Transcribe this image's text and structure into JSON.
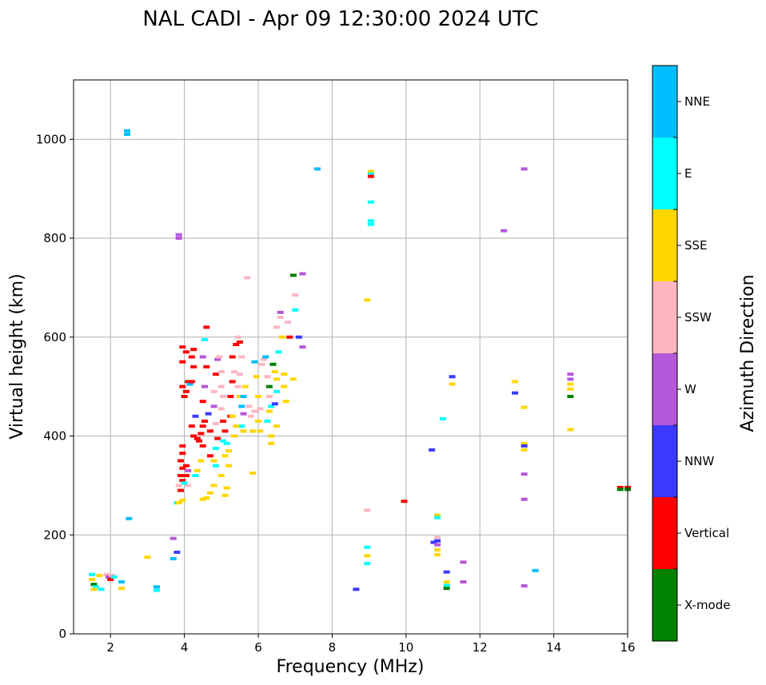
{
  "chart_data": {
    "type": "scatter",
    "title": "NAL CADI - Apr 09 12:30:00 2024 UTC",
    "xlabel": "Frequency (MHz)",
    "ylabel": "Virtual height (km)",
    "xlim": [
      1,
      16
    ],
    "ylim": [
      0,
      1120
    ],
    "xticks": [
      2,
      4,
      6,
      8,
      10,
      12,
      14,
      16
    ],
    "yticks": [
      0,
      200,
      400,
      600,
      800,
      1000
    ],
    "grid": true,
    "colorbar": {
      "label": "Azimuth Direction",
      "categories": [
        "X-mode",
        "Vertical",
        "NNW",
        "W",
        "SSW",
        "SSE",
        "E",
        "NNE"
      ],
      "colors": [
        "#008000",
        "#ff0000",
        "#3a3aff",
        "#b557d9",
        "#ffb6c1",
        "#ffd700",
        "#00ffff",
        "#00bfff"
      ]
    },
    "points": [
      [
        1.5,
        120,
        "E"
      ],
      [
        1.5,
        110,
        "SSE"
      ],
      [
        1.55,
        100,
        "X-mode"
      ],
      [
        1.6,
        95,
        "E"
      ],
      [
        1.55,
        90,
        "SSE"
      ],
      [
        1.7,
        118,
        "SSE"
      ],
      [
        1.75,
        90,
        "E"
      ],
      [
        1.9,
        120,
        "SSW"
      ],
      [
        1.95,
        115,
        "W"
      ],
      [
        2.0,
        110,
        "Vertical"
      ],
      [
        2.05,
        118,
        "SSW"
      ],
      [
        2.1,
        115,
        "E"
      ],
      [
        2.3,
        105,
        "NNE"
      ],
      [
        2.3,
        92,
        "SSE"
      ],
      [
        2.45,
        1010,
        "NNE"
      ],
      [
        2.45,
        1017,
        "NNE"
      ],
      [
        2.5,
        233,
        "NNE"
      ],
      [
        3.0,
        155,
        "SSE"
      ],
      [
        3.25,
        95,
        "NNE"
      ],
      [
        3.25,
        88,
        "E"
      ],
      [
        3.7,
        193,
        "W"
      ],
      [
        3.7,
        152,
        "NNE"
      ],
      [
        3.8,
        165,
        "NNW"
      ],
      [
        3.85,
        800,
        "W"
      ],
      [
        3.85,
        807,
        "W"
      ],
      [
        3.8,
        265,
        "E"
      ],
      [
        3.85,
        265,
        "SSE"
      ],
      [
        3.95,
        270,
        "SSE"
      ],
      [
        3.85,
        300,
        "SSW"
      ],
      [
        3.9,
        290,
        "Vertical"
      ],
      [
        3.95,
        310,
        "Vertical"
      ],
      [
        3.9,
        320,
        "Vertical"
      ],
      [
        3.95,
        335,
        "Vertical"
      ],
      [
        3.9,
        350,
        "Vertical"
      ],
      [
        3.95,
        365,
        "Vertical"
      ],
      [
        3.95,
        380,
        "Vertical"
      ],
      [
        4.05,
        320,
        "Vertical"
      ],
      [
        4.1,
        300,
        "SSW"
      ],
      [
        4.05,
        340,
        "Vertical"
      ],
      [
        4.0,
        305,
        "E"
      ],
      [
        4.1,
        330,
        "W"
      ],
      [
        4.0,
        480,
        "Vertical"
      ],
      [
        3.95,
        500,
        "Vertical"
      ],
      [
        4.05,
        490,
        "Vertical"
      ],
      [
        3.95,
        550,
        "Vertical"
      ],
      [
        3.95,
        580,
        "Vertical"
      ],
      [
        4.05,
        570,
        "Vertical"
      ],
      [
        4.1,
        510,
        "Vertical"
      ],
      [
        4.15,
        505,
        "NNE"
      ],
      [
        4.2,
        510,
        "Vertical"
      ],
      [
        4.25,
        540,
        "Vertical"
      ],
      [
        4.2,
        560,
        "Vertical"
      ],
      [
        4.25,
        575,
        "Vertical"
      ],
      [
        4.2,
        420,
        "Vertical"
      ],
      [
        4.25,
        400,
        "Vertical"
      ],
      [
        4.35,
        395,
        "Vertical"
      ],
      [
        4.3,
        440,
        "NNW"
      ],
      [
        4.4,
        390,
        "Vertical"
      ],
      [
        4.45,
        405,
        "Vertical"
      ],
      [
        4.5,
        380,
        "Vertical"
      ],
      [
        4.45,
        350,
        "SSE"
      ],
      [
        4.35,
        330,
        "SSE"
      ],
      [
        4.3,
        320,
        "E"
      ],
      [
        4.5,
        420,
        "Vertical"
      ],
      [
        4.55,
        430,
        "Vertical"
      ],
      [
        4.5,
        470,
        "Vertical"
      ],
      [
        4.55,
        500,
        "W"
      ],
      [
        4.5,
        560,
        "W"
      ],
      [
        4.55,
        595,
        "E"
      ],
      [
        4.6,
        620,
        "Vertical"
      ],
      [
        4.6,
        540,
        "Vertical"
      ],
      [
        4.65,
        445,
        "NNW"
      ],
      [
        4.7,
        410,
        "Vertical"
      ],
      [
        4.7,
        360,
        "Vertical"
      ],
      [
        4.6,
        275,
        "SSE"
      ],
      [
        4.5,
        272,
        "SSE"
      ],
      [
        4.7,
        285,
        "SSE"
      ],
      [
        4.8,
        300,
        "SSE"
      ],
      [
        4.85,
        340,
        "E"
      ],
      [
        4.8,
        350,
        "SSE"
      ],
      [
        4.85,
        375,
        "E"
      ],
      [
        4.9,
        395,
        "Vertical"
      ],
      [
        4.85,
        425,
        "SSW"
      ],
      [
        4.8,
        460,
        "W"
      ],
      [
        4.8,
        490,
        "SSW"
      ],
      [
        4.85,
        525,
        "Vertical"
      ],
      [
        4.9,
        555,
        "W"
      ],
      [
        4.95,
        560,
        "SSW"
      ],
      [
        5.0,
        530,
        "SSW"
      ],
      [
        5.0,
        500,
        "SSW"
      ],
      [
        5.05,
        480,
        "SSW"
      ],
      [
        5.0,
        455,
        "SSW"
      ],
      [
        5.05,
        430,
        "Vertical"
      ],
      [
        5.1,
        410,
        "Vertical"
      ],
      [
        5.05,
        390,
        "E"
      ],
      [
        5.15,
        385,
        "E"
      ],
      [
        5.1,
        360,
        "SSE"
      ],
      [
        5.2,
        370,
        "SSE"
      ],
      [
        5.2,
        340,
        "SSE"
      ],
      [
        5.0,
        320,
        "SSE"
      ],
      [
        5.15,
        295,
        "SSE"
      ],
      [
        5.1,
        280,
        "SSE"
      ],
      [
        5.25,
        440,
        "Vertical"
      ],
      [
        5.25,
        480,
        "Vertical"
      ],
      [
        5.3,
        510,
        "Vertical"
      ],
      [
        5.35,
        530,
        "SSW"
      ],
      [
        5.3,
        560,
        "Vertical"
      ],
      [
        5.4,
        585,
        "Vertical"
      ],
      [
        5.45,
        600,
        "SSW"
      ],
      [
        5.5,
        590,
        "Vertical"
      ],
      [
        5.55,
        560,
        "SSW"
      ],
      [
        5.5,
        525,
        "SSW"
      ],
      [
        5.45,
        500,
        "SSW"
      ],
      [
        5.5,
        480,
        "SSE"
      ],
      [
        5.55,
        460,
        "NNE"
      ],
      [
        5.6,
        445,
        "W"
      ],
      [
        5.55,
        420,
        "E"
      ],
      [
        5.6,
        410,
        "SSE"
      ],
      [
        5.35,
        400,
        "SSE"
      ],
      [
        5.4,
        420,
        "SSE"
      ],
      [
        5.3,
        440,
        "SSE"
      ],
      [
        5.6,
        480,
        "NNE"
      ],
      [
        5.65,
        500,
        "SSE"
      ],
      [
        5.7,
        720,
        "SSW"
      ],
      [
        5.75,
        460,
        "SSW"
      ],
      [
        5.8,
        440,
        "SSW"
      ],
      [
        5.85,
        410,
        "SSE"
      ],
      [
        5.9,
        450,
        "SSW"
      ],
      [
        5.85,
        325,
        "SSE"
      ],
      [
        5.9,
        550,
        "NNE"
      ],
      [
        5.95,
        520,
        "SSE"
      ],
      [
        6.0,
        480,
        "SSE"
      ],
      [
        6.05,
        455,
        "SSW"
      ],
      [
        6.0,
        430,
        "SSE"
      ],
      [
        6.05,
        410,
        "SSE"
      ],
      [
        6.1,
        545,
        "SSW"
      ],
      [
        6.15,
        555,
        "SSW"
      ],
      [
        6.2,
        560,
        "NNE"
      ],
      [
        6.25,
        520,
        "SSW"
      ],
      [
        6.3,
        500,
        "X-mode"
      ],
      [
        6.3,
        480,
        "SSW"
      ],
      [
        6.3,
        450,
        "SSE"
      ],
      [
        6.25,
        430,
        "E"
      ],
      [
        6.35,
        460,
        "E"
      ],
      [
        6.35,
        400,
        "SSE"
      ],
      [
        6.35,
        385,
        "SSE"
      ],
      [
        6.4,
        545,
        "X-mode"
      ],
      [
        6.45,
        530,
        "SSE"
      ],
      [
        6.5,
        515,
        "SSE"
      ],
      [
        6.5,
        490,
        "E"
      ],
      [
        6.45,
        465,
        "NNW"
      ],
      [
        6.5,
        420,
        "SSE"
      ],
      [
        6.55,
        570,
        "E"
      ],
      [
        6.5,
        620,
        "SSW"
      ],
      [
        6.6,
        640,
        "SSW"
      ],
      [
        6.6,
        650,
        "W"
      ],
      [
        6.65,
        600,
        "SSE"
      ],
      [
        6.7,
        525,
        "SSE"
      ],
      [
        6.7,
        500,
        "SSE"
      ],
      [
        6.75,
        470,
        "SSE"
      ],
      [
        6.8,
        630,
        "SSW"
      ],
      [
        6.85,
        600,
        "Vertical"
      ],
      [
        6.95,
        515,
        "SSE"
      ],
      [
        6.95,
        725,
        "X-mode"
      ],
      [
        7.0,
        655,
        "E"
      ],
      [
        7.0,
        685,
        "SSW"
      ],
      [
        7.1,
        600,
        "NNW"
      ],
      [
        7.2,
        580,
        "W"
      ],
      [
        7.2,
        728,
        "W"
      ],
      [
        7.6,
        940,
        "NNE"
      ],
      [
        8.65,
        90,
        "NNW"
      ],
      [
        8.95,
        675,
        "SSE"
      ],
      [
        8.95,
        250,
        "SSW"
      ],
      [
        8.95,
        175,
        "E"
      ],
      [
        8.95,
        158,
        "SSE"
      ],
      [
        8.95,
        142,
        "E"
      ],
      [
        9.05,
        935,
        "SSE"
      ],
      [
        9.05,
        930,
        "E"
      ],
      [
        9.05,
        925,
        "Vertical"
      ],
      [
        9.05,
        873,
        "E"
      ],
      [
        9.05,
        835,
        "E"
      ],
      [
        9.05,
        828,
        "E"
      ],
      [
        9.95,
        268,
        "Vertical"
      ],
      [
        10.7,
        372,
        "NNW"
      ],
      [
        10.75,
        185,
        "NNW"
      ],
      [
        10.85,
        240,
        "SSE"
      ],
      [
        10.85,
        235,
        "E"
      ],
      [
        10.85,
        195,
        "SSW"
      ],
      [
        10.85,
        188,
        "NNW"
      ],
      [
        10.85,
        180,
        "W"
      ],
      [
        10.85,
        170,
        "SSE"
      ],
      [
        10.85,
        160,
        "SSE"
      ],
      [
        11.0,
        435,
        "E"
      ],
      [
        11.1,
        125,
        "NNW"
      ],
      [
        11.1,
        105,
        "SSE"
      ],
      [
        11.1,
        98,
        "E"
      ],
      [
        11.1,
        92,
        "X-mode"
      ],
      [
        11.25,
        520,
        "NNW"
      ],
      [
        11.25,
        505,
        "SSE"
      ],
      [
        11.55,
        145,
        "W"
      ],
      [
        11.55,
        105,
        "W"
      ],
      [
        12.65,
        815,
        "W"
      ],
      [
        12.95,
        510,
        "SSE"
      ],
      [
        12.95,
        487,
        "NNW"
      ],
      [
        13.2,
        940,
        "W"
      ],
      [
        13.2,
        458,
        "SSE"
      ],
      [
        13.2,
        385,
        "SSE"
      ],
      [
        13.2,
        380,
        "NNW"
      ],
      [
        13.2,
        372,
        "SSE"
      ],
      [
        13.2,
        323,
        "W"
      ],
      [
        13.2,
        272,
        "W"
      ],
      [
        13.2,
        97,
        "W"
      ],
      [
        13.5,
        128,
        "NNE"
      ],
      [
        14.45,
        525,
        "W"
      ],
      [
        14.45,
        515,
        "W"
      ],
      [
        14.45,
        505,
        "SSE"
      ],
      [
        14.45,
        495,
        "SSE"
      ],
      [
        14.45,
        480,
        "X-mode"
      ],
      [
        14.45,
        413,
        "SSE"
      ],
      [
        15.8,
        296,
        "Vertical"
      ],
      [
        15.8,
        292,
        "X-mode"
      ],
      [
        16.0,
        296,
        "Vertical"
      ],
      [
        16.0,
        292,
        "X-mode"
      ]
    ]
  }
}
